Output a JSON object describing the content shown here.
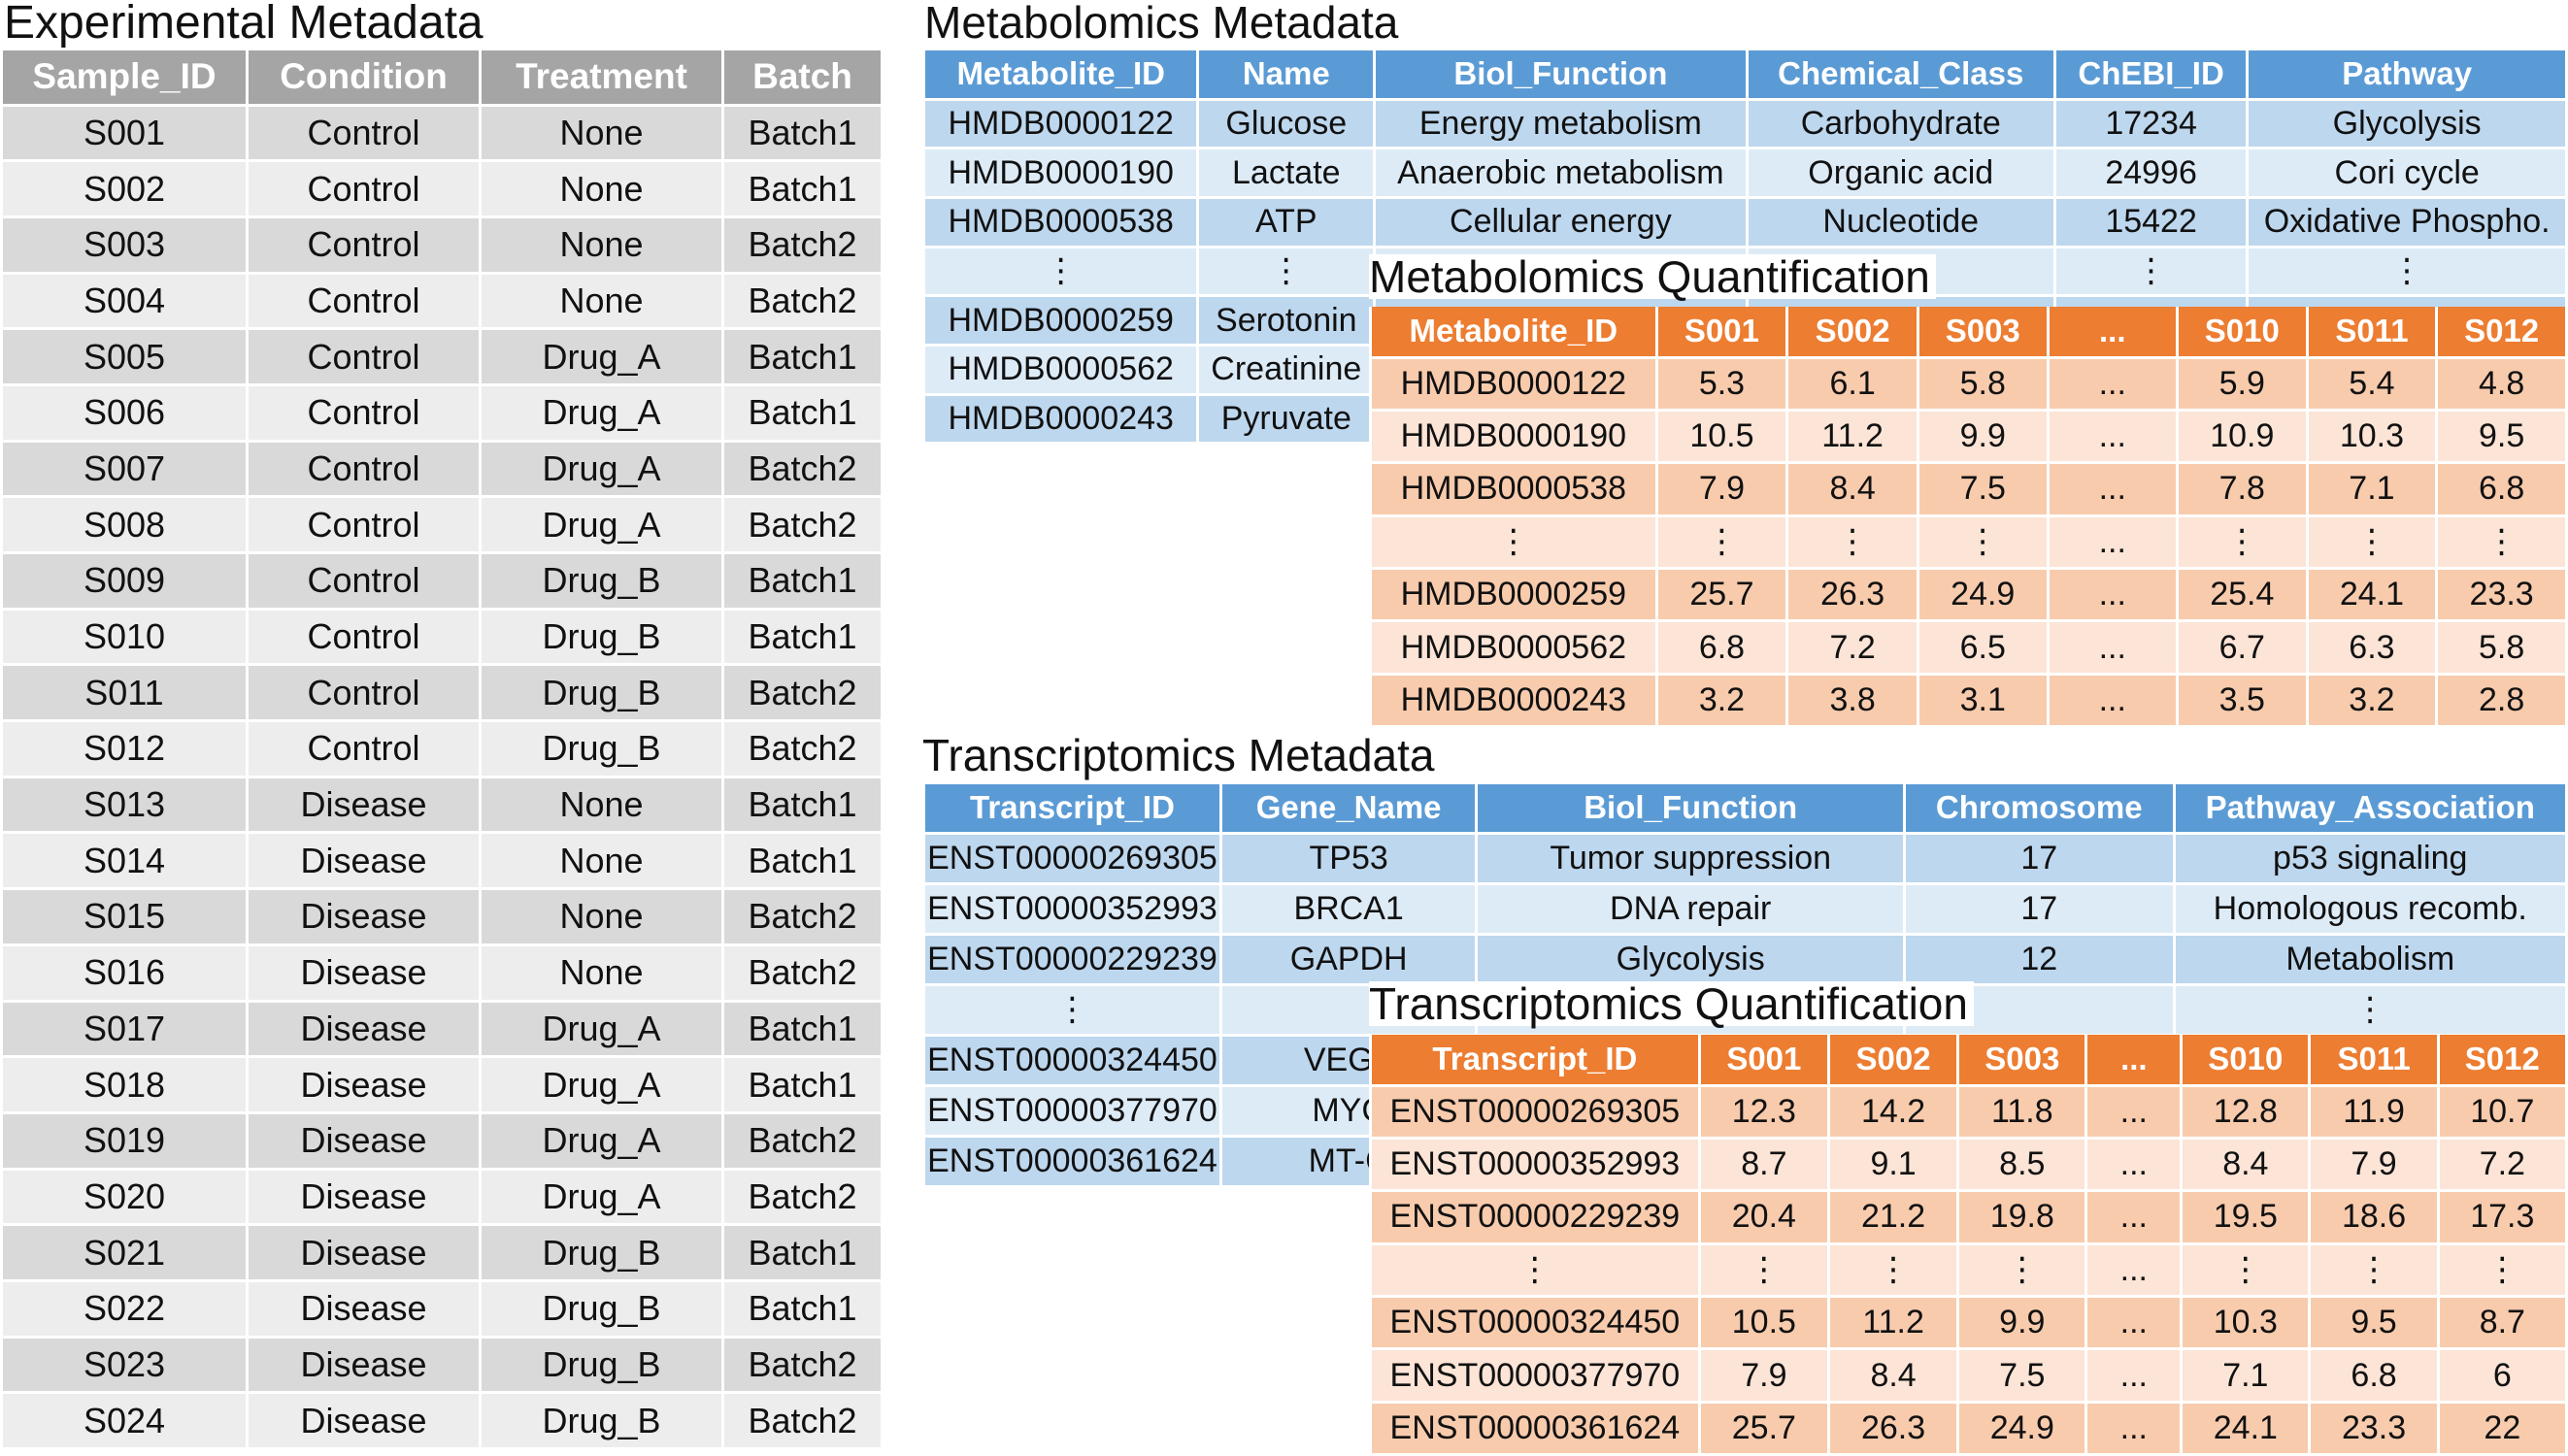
{
  "experimental_metadata": {
    "title": "Experimental Metadata",
    "columns": [
      "Sample_ID",
      "Condition",
      "Treatment",
      "Batch"
    ],
    "rows": [
      [
        "S001",
        "Control",
        "None",
        "Batch1"
      ],
      [
        "S002",
        "Control",
        "None",
        "Batch1"
      ],
      [
        "S003",
        "Control",
        "None",
        "Batch2"
      ],
      [
        "S004",
        "Control",
        "None",
        "Batch2"
      ],
      [
        "S005",
        "Control",
        "Drug_A",
        "Batch1"
      ],
      [
        "S006",
        "Control",
        "Drug_A",
        "Batch1"
      ],
      [
        "S007",
        "Control",
        "Drug_A",
        "Batch2"
      ],
      [
        "S008",
        "Control",
        "Drug_A",
        "Batch2"
      ],
      [
        "S009",
        "Control",
        "Drug_B",
        "Batch1"
      ],
      [
        "S010",
        "Control",
        "Drug_B",
        "Batch1"
      ],
      [
        "S011",
        "Control",
        "Drug_B",
        "Batch2"
      ],
      [
        "S012",
        "Control",
        "Drug_B",
        "Batch2"
      ],
      [
        "S013",
        "Disease",
        "None",
        "Batch1"
      ],
      [
        "S014",
        "Disease",
        "None",
        "Batch1"
      ],
      [
        "S015",
        "Disease",
        "None",
        "Batch2"
      ],
      [
        "S016",
        "Disease",
        "None",
        "Batch2"
      ],
      [
        "S017",
        "Disease",
        "Drug_A",
        "Batch1"
      ],
      [
        "S018",
        "Disease",
        "Drug_A",
        "Batch1"
      ],
      [
        "S019",
        "Disease",
        "Drug_A",
        "Batch2"
      ],
      [
        "S020",
        "Disease",
        "Drug_A",
        "Batch2"
      ],
      [
        "S021",
        "Disease",
        "Drug_B",
        "Batch1"
      ],
      [
        "S022",
        "Disease",
        "Drug_B",
        "Batch1"
      ],
      [
        "S023",
        "Disease",
        "Drug_B",
        "Batch2"
      ],
      [
        "S024",
        "Disease",
        "Drug_B",
        "Batch2"
      ]
    ]
  },
  "metabolomics_metadata": {
    "title": "Metabolomics Metadata",
    "columns": [
      "Metabolite_ID",
      "Name",
      "Biol_Function",
      "Chemical_Class",
      "ChEBI_ID",
      "Pathway"
    ],
    "rows": [
      [
        "HMDB0000122",
        "Glucose",
        "Energy metabolism",
        "Carbohydrate",
        "17234",
        "Glycolysis"
      ],
      [
        "HMDB0000190",
        "Lactate",
        "Anaerobic metabolism",
        "Organic acid",
        "24996",
        "Cori cycle"
      ],
      [
        "HMDB0000538",
        "ATP",
        "Cellular energy",
        "Nucleotide",
        "15422",
        "Oxidative Phospho."
      ],
      [
        "⋮",
        "⋮",
        "",
        "",
        "⋮",
        "⋮"
      ],
      [
        "HMDB0000259",
        "Serotonin",
        "",
        "",
        "",
        ""
      ],
      [
        "HMDB0000562",
        "Creatinine",
        "",
        "",
        "",
        ""
      ],
      [
        "HMDB0000243",
        "Pyruvate",
        "",
        "",
        "",
        ""
      ]
    ]
  },
  "metabolomics_quantification": {
    "title": "Metabolomics Quantification",
    "columns": [
      "Metabolite_ID",
      "S001",
      "S002",
      "S003",
      "...",
      "S010",
      "S011",
      "S012"
    ],
    "rows": [
      [
        "HMDB0000122",
        "5.3",
        "6.1",
        "5.8",
        "...",
        "5.9",
        "5.4",
        "4.8"
      ],
      [
        "HMDB0000190",
        "10.5",
        "11.2",
        "9.9",
        "...",
        "10.9",
        "10.3",
        "9.5"
      ],
      [
        "HMDB0000538",
        "7.9",
        "8.4",
        "7.5",
        "...",
        "7.8",
        "7.1",
        "6.8"
      ],
      [
        "⋮",
        "⋮",
        "⋮",
        "⋮",
        "...",
        "⋮",
        "⋮",
        "⋮"
      ],
      [
        "HMDB0000259",
        "25.7",
        "26.3",
        "24.9",
        "...",
        "25.4",
        "24.1",
        "23.3"
      ],
      [
        "HMDB0000562",
        "6.8",
        "7.2",
        "6.5",
        "...",
        "6.7",
        "6.3",
        "5.8"
      ],
      [
        "HMDB0000243",
        "3.2",
        "3.8",
        "3.1",
        "...",
        "3.5",
        "3.2",
        "2.8"
      ]
    ]
  },
  "transcriptomics_metadata": {
    "title": "Transcriptomics Metadata",
    "columns": [
      "Transcript_ID",
      "Gene_Name",
      "Biol_Function",
      "Chromosome",
      "Pathway_Association"
    ],
    "rows": [
      [
        "ENST00000269305",
        "TP53",
        "Tumor suppression",
        "17",
        "p53 signaling"
      ],
      [
        "ENST00000352993",
        "BRCA1",
        "DNA repair",
        "17",
        "Homologous recomb."
      ],
      [
        "ENST00000229239",
        "GAPDH",
        "Glycolysis",
        "12",
        "Metabolism"
      ],
      [
        "⋮",
        "",
        "",
        "",
        "⋮"
      ],
      [
        "ENST00000324450",
        "VEGF",
        "",
        "",
        ""
      ],
      [
        "ENST00000377970",
        "MYC",
        "",
        "",
        ""
      ],
      [
        "ENST00000361624",
        "MT-C",
        "",
        "",
        ""
      ]
    ]
  },
  "transcriptomics_quantification": {
    "title": "Transcriptomics Quantification",
    "columns": [
      "Transcript_ID",
      "S001",
      "S002",
      "S003",
      "...",
      "S010",
      "S011",
      "S012"
    ],
    "rows": [
      [
        "ENST00000269305",
        "12.3",
        "14.2",
        "11.8",
        "...",
        "12.8",
        "11.9",
        "10.7"
      ],
      [
        "ENST00000352993",
        "8.7",
        "9.1",
        "8.5",
        "...",
        "8.4",
        "7.9",
        "7.2"
      ],
      [
        "ENST00000229239",
        "20.4",
        "21.2",
        "19.8",
        "...",
        "19.5",
        "18.6",
        "17.3"
      ],
      [
        "⋮",
        "⋮",
        "⋮",
        "⋮",
        "...",
        "⋮",
        "⋮",
        "⋮"
      ],
      [
        "ENST00000324450",
        "10.5",
        "11.2",
        "9.9",
        "...",
        "10.3",
        "9.5",
        "8.7"
      ],
      [
        "ENST00000377970",
        "7.9",
        "8.4",
        "7.5",
        "...",
        "7.1",
        "6.8",
        "6"
      ],
      [
        "ENST00000361624",
        "25.7",
        "26.3",
        "24.9",
        "...",
        "24.1",
        "23.3",
        "22"
      ]
    ]
  },
  "colors": {
    "grey_header": "#a5a5a5",
    "blue_header": "#5b9bd5",
    "orange_header": "#ed7d31"
  }
}
